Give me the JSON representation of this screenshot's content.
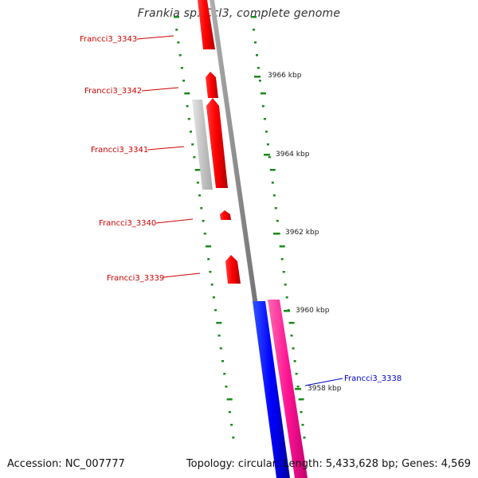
{
  "title": "Frankia sp. CcI3, complete genome",
  "footer": {
    "accession": "Accession: NC_007777",
    "summary": "Topology: circular; Length: 5,433,628 bp; Genes: 4,569"
  },
  "scale_labels": [
    "3966 kbp",
    "3964 kbp",
    "3962 kbp",
    "3960 kbp",
    "3958 kbp"
  ],
  "genes": [
    {
      "label": "Francci3_3343",
      "color": "#cc0000"
    },
    {
      "label": "Francci3_3342",
      "color": "#cc0000"
    },
    {
      "label": "Francci3_3341",
      "color": "#cc0000"
    },
    {
      "label": "Francci3_3340",
      "color": "#cc0000"
    },
    {
      "label": "Francci3_3339",
      "color": "#cc0000"
    },
    {
      "label": "Francci3_3338",
      "color": "#0000cc"
    }
  ],
  "colors": {
    "forward_cds": "#ff0000",
    "reverse_cds": "#ff0000",
    "blue_feature": "#0000ff",
    "pink_feature": "#ff1493",
    "grey_feature": "#c0c0c0",
    "backbone": "#777777",
    "tick": "#1a8a1a"
  }
}
